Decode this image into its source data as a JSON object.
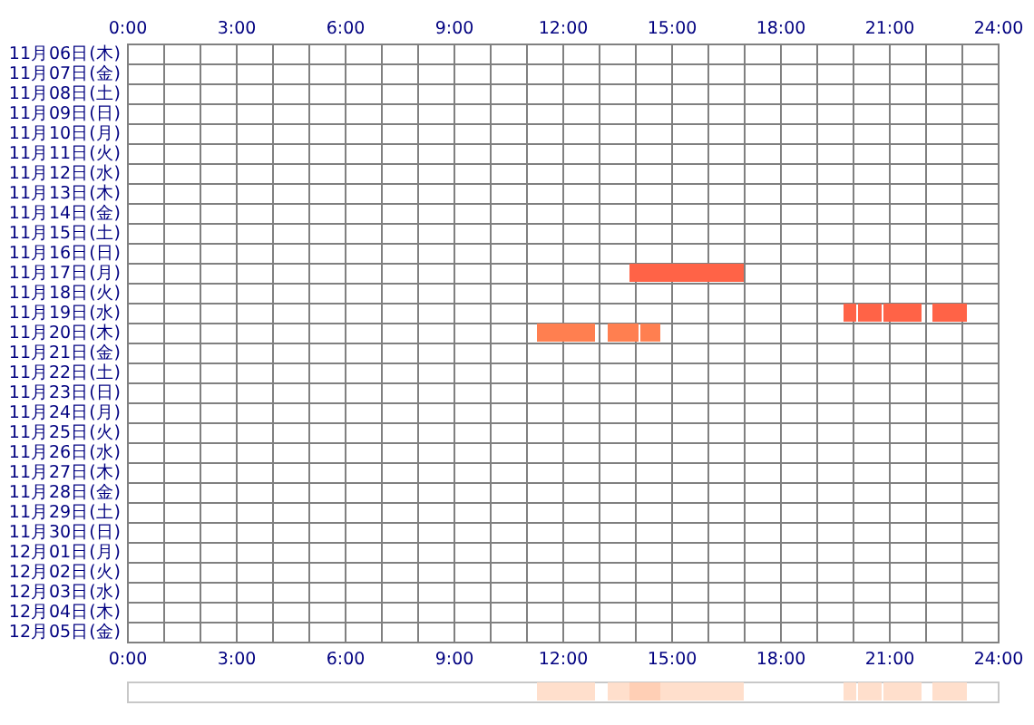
{
  "chart_data": [
    {
      "type": "bar",
      "orientation": "horizontal",
      "categories": [
        "11月06日(木)",
        "11月07日(金)",
        "11月08日(土)",
        "11月09日(日)",
        "11月10日(月)",
        "11月11日(火)",
        "11月12日(水)",
        "11月13日(木)",
        "11月14日(金)",
        "11月15日(土)",
        "11月16日(日)",
        "11月17日(月)",
        "11月18日(火)",
        "11月19日(水)",
        "11月20日(木)",
        "11月21日(金)",
        "11月22日(土)",
        "11月23日(日)",
        "11月24日(月)",
        "11月25日(火)",
        "11月26日(水)",
        "11月27日(木)",
        "11月28日(金)",
        "11月29日(土)",
        "11月30日(日)",
        "12月01日(月)",
        "12月02日(火)",
        "12月03日(水)",
        "12月04日(木)",
        "12月05日(金)"
      ],
      "series": [
        {
          "color": "#ff6347",
          "values": [
            null,
            null,
            null,
            null,
            null,
            null,
            null,
            null,
            null,
            null,
            null,
            3.15,
            null,
            0.35,
            null,
            null,
            null,
            null,
            null,
            null,
            null,
            null,
            null,
            null,
            null,
            null,
            null,
            null,
            null,
            null
          ],
          "base": [
            null,
            null,
            null,
            null,
            null,
            null,
            null,
            null,
            null,
            null,
            null,
            13.85,
            null,
            19.75,
            null,
            null,
            null,
            null,
            null,
            null,
            null,
            null,
            null,
            null,
            null,
            null,
            null,
            null,
            null,
            null
          ]
        },
        {
          "color": "#ff6347",
          "values": [
            null,
            null,
            null,
            null,
            null,
            null,
            null,
            null,
            null,
            null,
            null,
            null,
            null,
            0.65,
            null,
            null,
            null,
            null,
            null,
            null,
            null,
            null,
            null,
            null,
            null,
            null,
            null,
            null,
            null,
            null
          ],
          "base": [
            null,
            null,
            null,
            null,
            null,
            null,
            null,
            null,
            null,
            null,
            null,
            null,
            null,
            20.15,
            null,
            null,
            null,
            null,
            null,
            null,
            null,
            null,
            null,
            null,
            null,
            null,
            null,
            null,
            null,
            null
          ]
        },
        {
          "color": "#ff6347",
          "values": [
            null,
            null,
            null,
            null,
            null,
            null,
            null,
            null,
            null,
            null,
            null,
            null,
            null,
            1.05,
            null,
            null,
            null,
            null,
            null,
            null,
            null,
            null,
            null,
            null,
            null,
            null,
            null,
            null,
            null,
            null
          ],
          "base": [
            null,
            null,
            null,
            null,
            null,
            null,
            null,
            null,
            null,
            null,
            null,
            null,
            null,
            20.85,
            null,
            null,
            null,
            null,
            null,
            null,
            null,
            null,
            null,
            null,
            null,
            null,
            null,
            null,
            null,
            null
          ]
        },
        {
          "color": "#ff6347",
          "values": [
            null,
            null,
            null,
            null,
            null,
            null,
            null,
            null,
            null,
            null,
            null,
            null,
            null,
            0.95,
            null,
            null,
            null,
            null,
            null,
            null,
            null,
            null,
            null,
            null,
            null,
            null,
            null,
            null,
            null,
            null
          ],
          "base": [
            null,
            null,
            null,
            null,
            null,
            null,
            null,
            null,
            null,
            null,
            null,
            null,
            null,
            22.2,
            null,
            null,
            null,
            null,
            null,
            null,
            null,
            null,
            null,
            null,
            null,
            null,
            null,
            null,
            null,
            null
          ]
        },
        {
          "color": "#ff7f50",
          "values": [
            null,
            null,
            null,
            null,
            null,
            null,
            null,
            null,
            null,
            null,
            null,
            null,
            null,
            null,
            1.6,
            null,
            null,
            null,
            null,
            null,
            null,
            null,
            null,
            null,
            null,
            null,
            null,
            null,
            null,
            null
          ],
          "base": [
            null,
            null,
            null,
            null,
            null,
            null,
            null,
            null,
            null,
            null,
            null,
            null,
            null,
            null,
            11.3,
            null,
            null,
            null,
            null,
            null,
            null,
            null,
            null,
            null,
            null,
            null,
            null,
            null,
            null,
            null
          ]
        },
        {
          "color": "#ff7f50",
          "values": [
            null,
            null,
            null,
            null,
            null,
            null,
            null,
            null,
            null,
            null,
            null,
            null,
            null,
            null,
            0.85,
            null,
            null,
            null,
            null,
            null,
            null,
            null,
            null,
            null,
            null,
            null,
            null,
            null,
            null,
            null
          ],
          "base": [
            null,
            null,
            null,
            null,
            null,
            null,
            null,
            null,
            null,
            null,
            null,
            null,
            null,
            null,
            13.25,
            null,
            null,
            null,
            null,
            null,
            null,
            null,
            null,
            null,
            null,
            null,
            null,
            null,
            null,
            null
          ]
        },
        {
          "color": "#ff7f50",
          "values": [
            null,
            null,
            null,
            null,
            null,
            null,
            null,
            null,
            null,
            null,
            null,
            null,
            null,
            null,
            0.55,
            null,
            null,
            null,
            null,
            null,
            null,
            null,
            null,
            null,
            null,
            null,
            null,
            null,
            null,
            null
          ],
          "base": [
            null,
            null,
            null,
            null,
            null,
            null,
            null,
            null,
            null,
            null,
            null,
            null,
            null,
            null,
            14.15,
            null,
            null,
            null,
            null,
            null,
            null,
            null,
            null,
            null,
            null,
            null,
            null,
            null,
            null,
            null
          ]
        }
      ],
      "xlim": [
        0,
        24
      ],
      "xticks": [
        {
          "value": 0,
          "label": "0:00"
        },
        {
          "value": 1,
          "label": null
        },
        {
          "value": 2,
          "label": null
        },
        {
          "value": 3,
          "label": "3:00"
        },
        {
          "value": 4,
          "label": null
        },
        {
          "value": 5,
          "label": null
        },
        {
          "value": 6,
          "label": "6:00"
        },
        {
          "value": 7,
          "label": null
        },
        {
          "value": 8,
          "label": null
        },
        {
          "value": 9,
          "label": "9:00"
        },
        {
          "value": 10,
          "label": null
        },
        {
          "value": 11,
          "label": null
        },
        {
          "value": 12,
          "label": "12:00"
        },
        {
          "value": 13,
          "label": null
        },
        {
          "value": 14,
          "label": null
        },
        {
          "value": 15,
          "label": "15:00"
        },
        {
          "value": 16,
          "label": null
        },
        {
          "value": 17,
          "label": null
        },
        {
          "value": 18,
          "label": "18:00"
        },
        {
          "value": 19,
          "label": null
        },
        {
          "value": 20,
          "label": null
        },
        {
          "value": 21,
          "label": "21:00"
        },
        {
          "value": 22,
          "label": null
        },
        {
          "value": 23,
          "label": null
        },
        {
          "value": 24,
          "label": "24:00"
        }
      ],
      "x2lim": [
        0,
        24
      ],
      "x2ticks": [
        {
          "value": 0,
          "label": "0:00"
        },
        {
          "value": 3,
          "label": "3:00"
        },
        {
          "value": 6,
          "label": "6:00"
        },
        {
          "value": 9,
          "label": "9:00"
        },
        {
          "value": 12,
          "label": "12:00"
        },
        {
          "value": 15,
          "label": "15:00"
        },
        {
          "value": 18,
          "label": "18:00"
        },
        {
          "value": 21,
          "label": "21:00"
        },
        {
          "value": 24,
          "label": "24:00"
        }
      ],
      "grid": true
    },
    {
      "type": "bar",
      "orientation": "horizontal",
      "categories": [
        null
      ],
      "xlim": [
        0,
        24
      ],
      "tick_labels": false,
      "series": [
        {
          "color": "#ffdfcc",
          "values": [
            1.6
          ],
          "base": [
            11.3
          ]
        },
        {
          "color": "#ffdfcc",
          "values": [
            0.6
          ],
          "base": [
            13.25
          ]
        },
        {
          "color": "#ffcfb5",
          "values": [
            0.85
          ],
          "base": [
            13.85
          ]
        },
        {
          "color": "#ffdfcc",
          "values": [
            2.3
          ],
          "base": [
            14.7
          ]
        },
        {
          "color": "#ffdfcc",
          "values": [
            0.35
          ],
          "base": [
            19.75
          ]
        },
        {
          "color": "#ffdfcc",
          "values": [
            0.65
          ],
          "base": [
            20.15
          ]
        },
        {
          "color": "#ffdfcc",
          "values": [
            1.05
          ],
          "base": [
            20.85
          ]
        },
        {
          "color": "#ffdfcc",
          "values": [
            0.95
          ],
          "base": [
            22.2
          ]
        }
      ]
    }
  ]
}
